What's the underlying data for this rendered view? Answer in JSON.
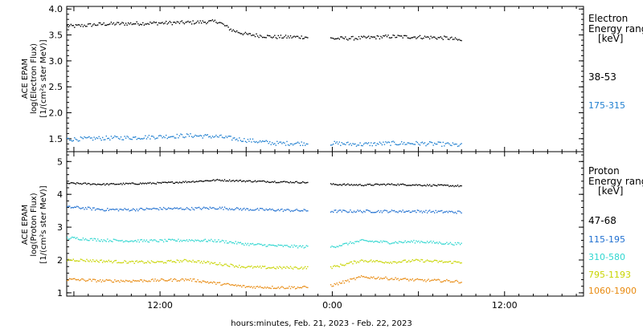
{
  "xaxis": {
    "title": "hours:minutes, Feb. 21, 2023 - Feb. 22, 2023",
    "ticks": [
      {
        "hour": 12,
        "label": "12:00"
      },
      {
        "hour": 24,
        "label": "0:00"
      },
      {
        "hour": 36,
        "label": "12:00"
      }
    ],
    "range_hours": [
      5.5,
      41.5
    ]
  },
  "electron_panel": {
    "ylabel_lines": [
      "ACE EPAM",
      "log(Electron Flux)",
      "[1/(cm²s ster MeV)]"
    ],
    "yticks": [
      "1.5",
      "2.0",
      "2.5",
      "3.0",
      "3.5",
      "4.0"
    ],
    "yrange": [
      1.25,
      4.05
    ],
    "legend_title_lines": [
      "Electron",
      "Energy range",
      "[keV]"
    ],
    "channels": [
      {
        "label": "38-53",
        "color": "#000000"
      },
      {
        "label": "175-315",
        "color": "#1f7fd0"
      }
    ]
  },
  "proton_panel": {
    "ylabel_lines": [
      "ACE EPAM",
      "log(Proton Flux)",
      "[1/(cm²s ster MeV)]"
    ],
    "yticks": [
      "1",
      "2",
      "3",
      "4",
      "5"
    ],
    "yrange": [
      0.9,
      5.3
    ],
    "legend_title_lines": [
      "Proton",
      "Energy range",
      "[keV]"
    ],
    "channels": [
      {
        "label": "47-68",
        "color": "#000000"
      },
      {
        "label": "115-195",
        "color": "#1f6fd0"
      },
      {
        "label": "310-580",
        "color": "#2fd6d0"
      },
      {
        "label": "795-1193",
        "color": "#c8d400"
      },
      {
        "label": "1060-1900",
        "color": "#e88a10"
      }
    ]
  },
  "chart_data": [
    {
      "type": "scatter",
      "title": "",
      "xlabel": "hours:minutes, Feb. 21, 2023 - Feb. 22, 2023",
      "ylabel": "ACE EPAM log(Electron Flux) [1/(cm²s ster MeV)]",
      "x_unit": "hours since Feb. 21, 2023 00:00",
      "xlim": [
        5.5,
        41.5
      ],
      "ylim": [
        1.25,
        4.05
      ],
      "grid": false,
      "legend_position": "right",
      "data_gap_hours": [
        22.3,
        23.8
      ],
      "series": [
        {
          "name": "38-53",
          "color": "#000000",
          "x": [
            6,
            8,
            10,
            12,
            14,
            16,
            17,
            18,
            20,
            22,
            24,
            26,
            28,
            30,
            32,
            33
          ],
          "y": [
            3.68,
            3.72,
            3.73,
            3.74,
            3.75,
            3.77,
            3.6,
            3.52,
            3.47,
            3.47,
            3.44,
            3.45,
            3.48,
            3.47,
            3.45,
            3.4
          ]
        },
        {
          "name": "175-315",
          "color": "#1f7fd0",
          "x": [
            6,
            8,
            10,
            12,
            14,
            16,
            18,
            20,
            22,
            24,
            26,
            28,
            30,
            32,
            33
          ],
          "y": [
            1.5,
            1.52,
            1.53,
            1.55,
            1.57,
            1.55,
            1.48,
            1.42,
            1.42,
            1.42,
            1.4,
            1.42,
            1.42,
            1.4,
            1.38
          ]
        }
      ]
    },
    {
      "type": "scatter",
      "title": "",
      "xlabel": "hours:minutes, Feb. 21, 2023 - Feb. 22, 2023",
      "ylabel": "ACE EPAM log(Proton Flux) [1/(cm²s ster MeV)]",
      "x_unit": "hours since Feb. 21, 2023 00:00",
      "xlim": [
        5.5,
        41.5
      ],
      "ylim": [
        0.9,
        5.3
      ],
      "grid": false,
      "legend_position": "right",
      "data_gap_hours": [
        22.3,
        23.8
      ],
      "series": [
        {
          "name": "47-68",
          "color": "#000000",
          "x": [
            6,
            8,
            10,
            12,
            14,
            16,
            18,
            20,
            22,
            24,
            26,
            28,
            30,
            32,
            33
          ],
          "y": [
            4.35,
            4.32,
            4.34,
            4.36,
            4.4,
            4.45,
            4.42,
            4.4,
            4.38,
            4.32,
            4.3,
            4.32,
            4.3,
            4.28,
            4.27
          ]
        },
        {
          "name": "115-195",
          "color": "#1f6fd0",
          "x": [
            6,
            8,
            10,
            12,
            14,
            16,
            18,
            20,
            22,
            24,
            26,
            28,
            30,
            32,
            33
          ],
          "y": [
            3.62,
            3.55,
            3.55,
            3.58,
            3.58,
            3.6,
            3.56,
            3.54,
            3.52,
            3.5,
            3.5,
            3.5,
            3.5,
            3.48,
            3.47
          ]
        },
        {
          "name": "310-580",
          "color": "#2fd6d0",
          "x": [
            6,
            8,
            10,
            12,
            14,
            16,
            18,
            20,
            22,
            24,
            26,
            28,
            30,
            32,
            33
          ],
          "y": [
            2.68,
            2.62,
            2.6,
            2.6,
            2.62,
            2.6,
            2.5,
            2.45,
            2.42,
            2.42,
            2.6,
            2.55,
            2.58,
            2.52,
            2.5
          ]
        },
        {
          "name": "795-1193",
          "color": "#c8d400",
          "x": [
            6,
            8,
            10,
            12,
            14,
            16,
            18,
            20,
            22,
            24,
            26,
            28,
            30,
            32,
            33
          ],
          "y": [
            2.02,
            1.98,
            1.95,
            1.95,
            2.0,
            1.9,
            1.8,
            1.78,
            1.78,
            1.8,
            2.0,
            1.95,
            2.0,
            1.95,
            1.95
          ]
        },
        {
          "name": "1060-1900",
          "color": "#e88a10",
          "x": [
            6,
            8,
            10,
            12,
            14,
            16,
            18,
            20,
            22,
            24,
            26,
            28,
            30,
            32,
            33
          ],
          "y": [
            1.42,
            1.38,
            1.38,
            1.4,
            1.42,
            1.3,
            1.2,
            1.18,
            1.18,
            1.25,
            1.5,
            1.45,
            1.4,
            1.38,
            1.35
          ]
        }
      ]
    }
  ]
}
